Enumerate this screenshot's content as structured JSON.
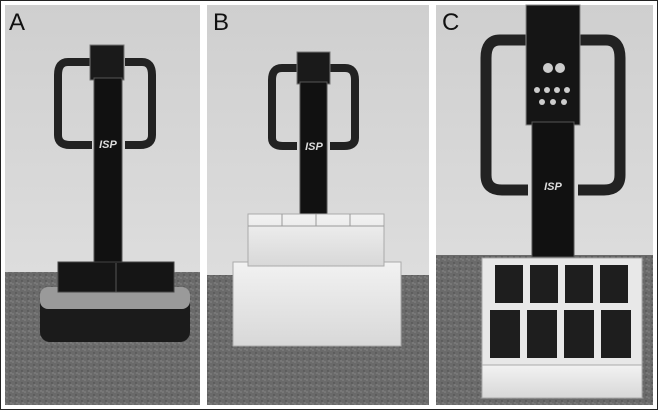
{
  "panels": [
    {
      "label": "A",
      "logo": "ISP"
    },
    {
      "label": "B",
      "logo": "ISP"
    },
    {
      "label": "C",
      "logo": "ISP"
    }
  ]
}
